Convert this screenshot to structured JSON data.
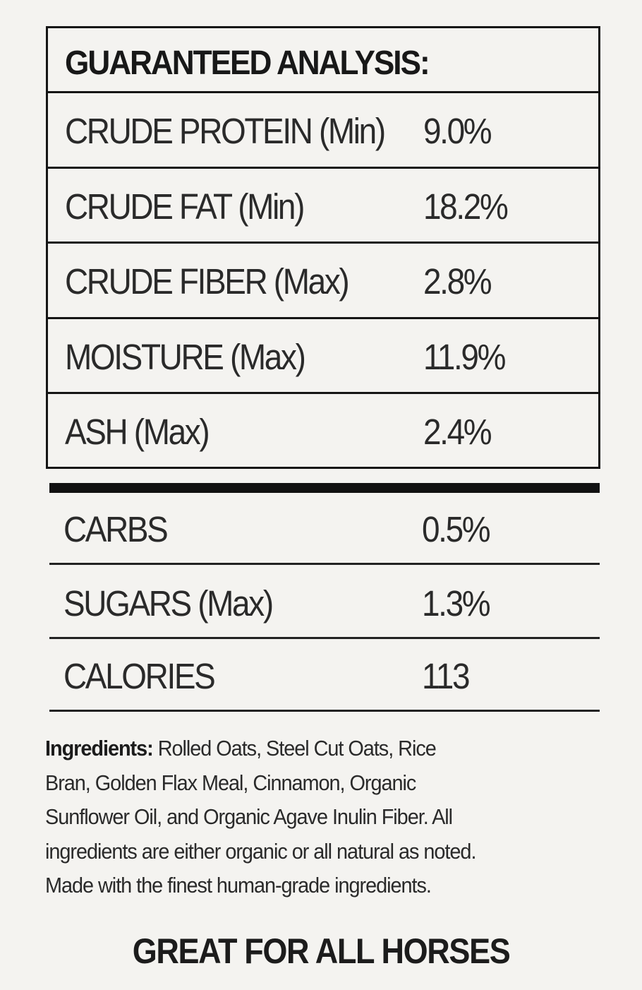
{
  "analysis": {
    "title": "GUARANTEED ANALYSIS:",
    "rows": [
      {
        "label": "CRUDE PROTEIN (Min)",
        "value": "9.0%"
      },
      {
        "label": "CRUDE FAT (Min)",
        "value": "18.2%"
      },
      {
        "label": "CRUDE FIBER (Max)",
        "value": "2.8%"
      },
      {
        "label": "MOISTURE (Max)",
        "value": "11.9%"
      },
      {
        "label": "ASH (Max)",
        "value": "2.4%"
      }
    ]
  },
  "extra": [
    {
      "label": "CARBS",
      "value": "0.5%"
    },
    {
      "label": "SUGARS (Max)",
      "value": "1.3%"
    },
    {
      "label": "CALORIES",
      "value": "113"
    }
  ],
  "ingredients": {
    "label": "Ingredients:",
    "lines": [
      " Rolled Oats, Steel Cut Oats, Rice",
      "Bran, Golden Flax Meal, Cinnamon, Organic",
      "Sunflower Oil, and Organic Agave Inulin Fiber. All",
      "ingredients are either organic or all natural as noted.",
      "Made with the finest human-grade ingredients."
    ]
  },
  "footer": "GREAT FOR ALL HORSES"
}
